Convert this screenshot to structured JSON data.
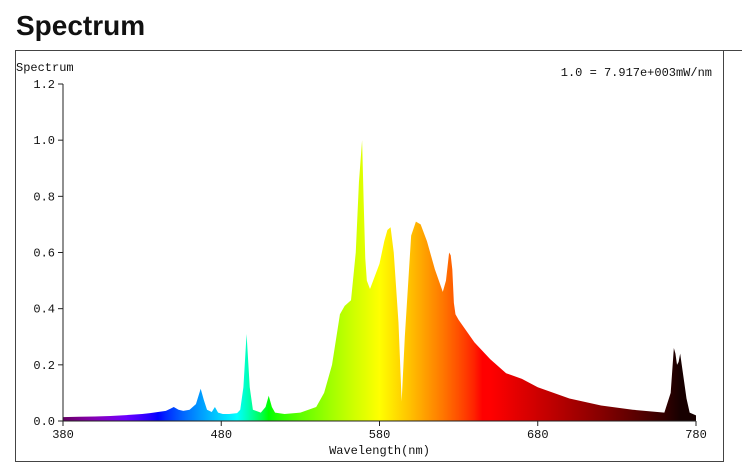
{
  "page": {
    "heading": "Spectrum"
  },
  "chart_data": {
    "type": "area",
    "title": "",
    "ylabel": "Spectrum",
    "xlabel": "Wavelength(nm)",
    "annotation": "1.0 = 7.917e+003mW/nm",
    "xlim": [
      380,
      780
    ],
    "ylim": [
      0,
      1.2
    ],
    "x_ticks": [
      380,
      480,
      580,
      680,
      780
    ],
    "x_tick_labels": [
      "380",
      "480",
      "580",
      "680",
      "780"
    ],
    "y_ticks": [
      0,
      0.2,
      0.4,
      0.6,
      0.8,
      1.0,
      1.2
    ],
    "y_tick_labels": [
      "0.0",
      "0.2",
      "0.4",
      "0.6",
      "0.8",
      "1.0",
      "1.2"
    ],
    "fill": "wavelength-colored",
    "x": [
      380,
      390,
      400,
      410,
      420,
      430,
      435,
      440,
      445,
      448,
      450,
      453,
      456,
      460,
      464,
      467,
      469,
      471,
      474,
      476,
      478,
      481,
      485,
      490,
      492,
      494,
      496,
      498,
      500,
      505,
      508,
      510,
      512,
      514,
      520,
      530,
      540,
      545,
      550,
      555,
      558,
      562,
      565,
      567,
      569,
      570,
      571,
      572,
      574,
      576,
      580,
      583,
      585,
      587,
      589,
      592,
      594,
      596,
      600,
      603,
      606,
      610,
      615,
      620,
      622,
      624,
      625,
      626,
      627,
      628,
      630,
      640,
      650,
      660,
      670,
      680,
      690,
      700,
      720,
      740,
      760,
      764,
      766,
      767,
      768,
      769,
      770,
      772,
      774,
      776,
      780
    ],
    "y": [
      0.014,
      0.015,
      0.016,
      0.018,
      0.021,
      0.025,
      0.028,
      0.032,
      0.036,
      0.044,
      0.05,
      0.04,
      0.036,
      0.04,
      0.06,
      0.115,
      0.075,
      0.04,
      0.032,
      0.05,
      0.03,
      0.025,
      0.025,
      0.028,
      0.04,
      0.12,
      0.31,
      0.12,
      0.04,
      0.03,
      0.05,
      0.09,
      0.05,
      0.03,
      0.025,
      0.03,
      0.05,
      0.1,
      0.2,
      0.38,
      0.41,
      0.43,
      0.6,
      0.85,
      1.0,
      0.78,
      0.58,
      0.5,
      0.47,
      0.5,
      0.56,
      0.64,
      0.68,
      0.69,
      0.6,
      0.35,
      0.07,
      0.3,
      0.66,
      0.71,
      0.7,
      0.64,
      0.54,
      0.46,
      0.5,
      0.6,
      0.59,
      0.54,
      0.42,
      0.38,
      0.36,
      0.28,
      0.22,
      0.17,
      0.15,
      0.12,
      0.1,
      0.08,
      0.055,
      0.04,
      0.03,
      0.1,
      0.26,
      0.24,
      0.2,
      0.21,
      0.24,
      0.16,
      0.08,
      0.03,
      0.02
    ]
  }
}
